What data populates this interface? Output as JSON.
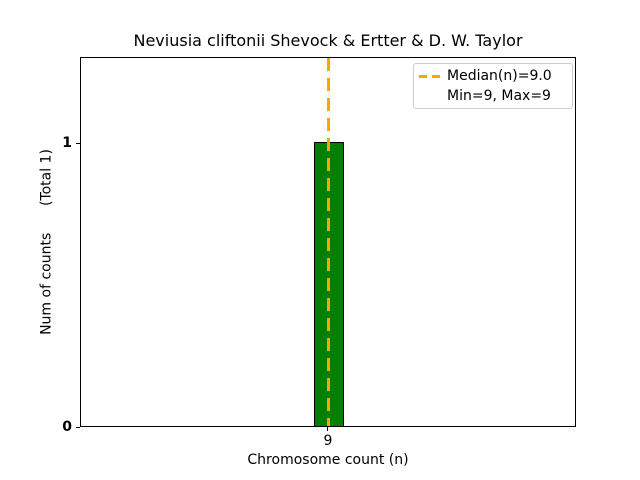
{
  "chart_data": {
    "type": "bar",
    "title": "Neviusia cliftonii Shevock & Ertter & D. W. Taylor",
    "xlabel": "Chromosome count (n)",
    "ylabel": "Num of counts      (Total 1)",
    "categories": [
      9
    ],
    "values": [
      1
    ],
    "x_ticks": [
      "9"
    ],
    "y_ticks": [
      "0",
      "1"
    ],
    "ylim": [
      0,
      1.3
    ],
    "grid": false,
    "bar": {
      "x": 9,
      "count": 1,
      "fill_color": "#008000",
      "edge_color": "#000000"
    },
    "median_line": {
      "value": 9.0,
      "orientation": "vertical",
      "style": "dashed",
      "color": "#ffa500"
    },
    "legend": {
      "position": "upper right",
      "entries": [
        {
          "label": "Median(n)=9.0",
          "marker": "orange-dashed-line"
        },
        {
          "label": "Min=9, Max=9",
          "marker": "none"
        }
      ]
    },
    "stats": {
      "median": 9.0,
      "min": 9,
      "max": 9,
      "total_counts": 1
    }
  }
}
